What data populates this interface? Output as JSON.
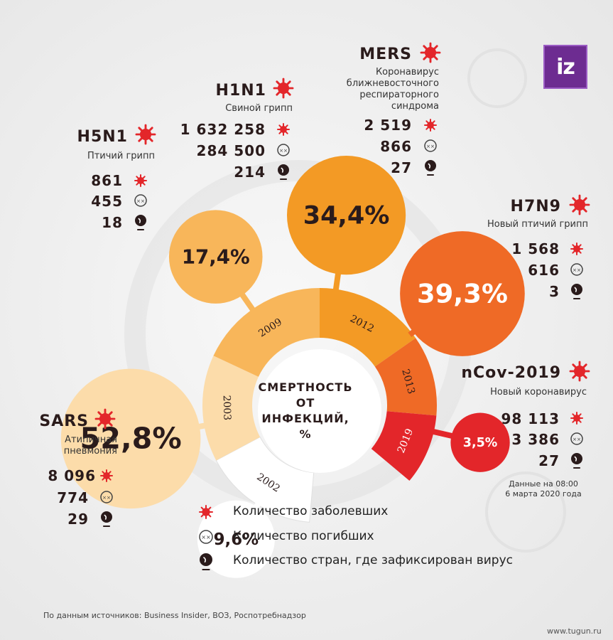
{
  "brand": {
    "logo_text": "iz",
    "accent": "#6d2c91"
  },
  "center_title": [
    "СМЕРТНОСТЬ",
    "ОТ ИНФЕКЦИЙ,",
    "%"
  ],
  "icons": {
    "cases": "virus-icon",
    "deaths": "dead-face-icon",
    "countries": "globe-icon"
  },
  "legend": {
    "cases": "Количество заболевших",
    "deaths": "Количество погибших",
    "countries": "Количество стран, где зафиксирован вирус"
  },
  "note": [
    "Данные на 08:00",
    "6 марта 2020 года"
  ],
  "source": "По данным источников: Business Insider, ВОЗ, Роспотребнадзор",
  "watermark": "www.tugun.ru",
  "chart_data": {
    "type": "pie",
    "title": "СМЕРТНОСТЬ ОТ ИНФЕКЦИЙ, %",
    "categories": [
      "SARS",
      "H5N1",
      "H1N1",
      "MERS",
      "H7N9",
      "nCov-2019"
    ],
    "years": [
      "2002",
      "2003",
      "2009",
      "2012",
      "2013",
      "2019"
    ],
    "mortality": [
      9.6,
      52.8,
      17.4,
      34.4,
      39.3,
      3.5
    ],
    "mortality_labels": [
      "9,6%",
      "52,8%",
      "17,4%",
      "34,4%",
      "39,3%",
      "3,5%"
    ],
    "subtitles": [
      "Атипичная пневмония",
      "Птичий грипп",
      "Свиной грипп",
      "Коронавирус ближневосточного респираторного синдрома",
      "Новый птичий грипп",
      "Новый коронавирус"
    ],
    "cases": [
      "8 096",
      "861",
      "1 632 258",
      "2 519",
      "1 568",
      "98 113"
    ],
    "deaths": [
      "774",
      "455",
      "284 500",
      "866",
      "616",
      "3 386"
    ],
    "countries": [
      "29",
      "18",
      "214",
      "27",
      "3",
      "27"
    ],
    "colors": [
      "#ffffff",
      "#fcdcaa",
      "#f8b65a",
      "#f39a25",
      "#ef6a26",
      "#e3262a"
    ]
  }
}
